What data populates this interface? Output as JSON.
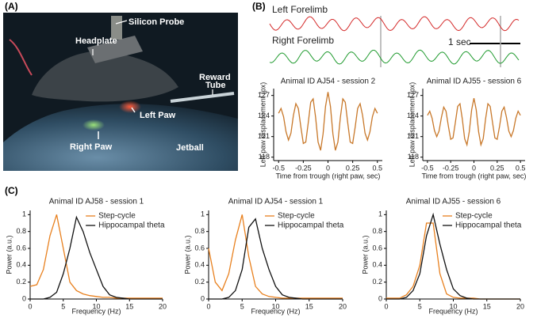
{
  "panel_labels": [
    "(A)",
    "(B)",
    "(C)"
  ],
  "photo": {
    "annotations": [
      "Silicon Probe",
      "Headplate",
      "Reward",
      "Tube",
      "Left Paw",
      "Right Paw",
      "Jetball"
    ]
  },
  "traces": {
    "labels": [
      "Left Forelimb",
      "Right Forelimb"
    ],
    "scale_bar": "1 sec",
    "colors": [
      "#d42a2a",
      "#1f9a2e"
    ]
  },
  "chart_data": [
    {
      "type": "line",
      "title": "Animal ID AJ54 - session 2",
      "xlabel": "Time from trough (right paw, sec)",
      "ylabel": "Left paw displacement (px)",
      "x": [
        -0.5,
        -0.475,
        -0.45,
        -0.425,
        -0.4,
        -0.375,
        -0.35,
        -0.325,
        -0.3,
        -0.275,
        -0.25,
        -0.225,
        -0.2,
        -0.175,
        -0.15,
        -0.125,
        -0.1,
        -0.075,
        -0.05,
        -0.025,
        0,
        0.025,
        0.05,
        0.075,
        0.1,
        0.125,
        0.15,
        0.175,
        0.2,
        0.225,
        0.25,
        0.275,
        0.3,
        0.325,
        0.35,
        0.375,
        0.4,
        0.425,
        0.45,
        0.475,
        0.5
      ],
      "series": [
        {
          "name": null,
          "color": "#c8782a",
          "values": [
            124.4,
            125.1,
            123.9,
            121.7,
            120.5,
            121.5,
            124.1,
            125.8,
            125.1,
            122.4,
            120.0,
            120.2,
            123.0,
            126.0,
            126.5,
            123.8,
            120.2,
            119.0,
            121.4,
            125.4,
            127.5,
            125.4,
            121.4,
            119.0,
            120.2,
            123.8,
            126.5,
            126.0,
            123.0,
            120.2,
            120.0,
            122.4,
            125.1,
            125.8,
            124.1,
            121.5,
            120.5,
            121.7,
            123.9,
            125.1,
            124.4
          ]
        }
      ],
      "xlim": [
        -0.55,
        0.55
      ],
      "ylim": [
        117.5,
        128
      ],
      "xticks": [
        -0.5,
        -0.25,
        0,
        0.25,
        0.5
      ],
      "yticks": [
        118,
        121,
        124,
        127
      ],
      "legend": null
    },
    {
      "type": "line",
      "title": "Animal ID AJ55 - session 6",
      "xlabel": "Time from trough (right paw, sec)",
      "ylabel": "Left paw displacement (px)",
      "x": [
        -0.5,
        -0.475,
        -0.45,
        -0.425,
        -0.4,
        -0.375,
        -0.35,
        -0.325,
        -0.3,
        -0.275,
        -0.25,
        -0.225,
        -0.2,
        -0.175,
        -0.15,
        -0.125,
        -0.1,
        -0.075,
        -0.05,
        -0.025,
        0,
        0.025,
        0.05,
        0.075,
        0.1,
        0.125,
        0.15,
        0.175,
        0.2,
        0.225,
        0.25,
        0.275,
        0.3,
        0.325,
        0.35,
        0.375,
        0.4,
        0.425,
        0.45,
        0.475,
        0.5
      ],
      "series": [
        {
          "name": null,
          "color": "#c8782a",
          "values": [
            124.1,
            124.7,
            123.7,
            121.9,
            121.0,
            121.8,
            123.8,
            125.3,
            124.7,
            122.5,
            120.6,
            120.8,
            123.0,
            125.4,
            125.8,
            123.6,
            120.7,
            119.8,
            121.7,
            124.9,
            126.6,
            124.9,
            121.7,
            119.8,
            120.7,
            123.6,
            125.8,
            125.4,
            123.0,
            120.8,
            120.6,
            122.5,
            124.7,
            125.3,
            123.8,
            121.8,
            121.0,
            121.9,
            123.7,
            124.7,
            124.1
          ]
        }
      ],
      "xlim": [
        -0.55,
        0.55
      ],
      "ylim": [
        117.5,
        128
      ],
      "xticks": [
        -0.5,
        -0.25,
        0,
        0.25,
        0.5
      ],
      "yticks": [
        118,
        121,
        124,
        127
      ],
      "legend": null
    },
    {
      "type": "line",
      "title": "Animal ID AJ58 - session 1",
      "xlabel": "Frequency (Hz)",
      "ylabel": "Power (a.u.)",
      "x": [
        0,
        1,
        2,
        3,
        4,
        5,
        6,
        7,
        8,
        9,
        10,
        11,
        12,
        13,
        14,
        15,
        16,
        17,
        18,
        19,
        20
      ],
      "series": [
        {
          "name": "Step-cycle",
          "color": "#e8801e",
          "values": [
            0.15,
            0.17,
            0.35,
            0.75,
            1.0,
            0.6,
            0.2,
            0.1,
            0.06,
            0.04,
            0.03,
            0.02,
            0.02,
            0.01,
            0.01,
            0.01,
            0.01,
            0.01,
            0.01,
            0.01,
            0.01
          ]
        },
        {
          "name": "Hippocampal theta",
          "color": "#111111",
          "values": [
            0,
            0,
            0,
            0.02,
            0.08,
            0.3,
            0.6,
            0.97,
            0.8,
            0.55,
            0.35,
            0.15,
            0.05,
            0.02,
            0.01,
            0,
            0,
            0,
            0,
            0,
            0
          ]
        }
      ],
      "xlim": [
        0,
        20
      ],
      "ylim": [
        0,
        1.05
      ],
      "xticks": [
        0,
        5,
        10,
        15,
        20
      ],
      "yticks": [
        0,
        0.2,
        0.4,
        0.6,
        0.8,
        1
      ],
      "legend": "upper right"
    },
    {
      "type": "line",
      "title": "Animal ID AJ54 - session 1",
      "xlabel": "Frequency (Hz)",
      "ylabel": "Power (a.u.)",
      "x": [
        0,
        1,
        2,
        3,
        4,
        5,
        6,
        7,
        8,
        9,
        10,
        11,
        12,
        13,
        14,
        15,
        16,
        17,
        18,
        19,
        20
      ],
      "series": [
        {
          "name": "Step-cycle",
          "color": "#e8801e",
          "values": [
            0.6,
            0.2,
            0.1,
            0.3,
            0.7,
            1.0,
            0.5,
            0.15,
            0.06,
            0.03,
            0.02,
            0.01,
            0.01,
            0.01,
            0.01,
            0.01,
            0.01,
            0.01,
            0.01,
            0.01,
            0.01
          ]
        },
        {
          "name": "Hippocampal theta",
          "color": "#111111",
          "values": [
            0,
            0,
            0,
            0.02,
            0.1,
            0.35,
            0.85,
            0.95,
            0.6,
            0.35,
            0.15,
            0.05,
            0.02,
            0.01,
            0,
            0,
            0,
            0,
            0,
            0,
            0
          ]
        }
      ],
      "xlim": [
        0,
        20
      ],
      "ylim": [
        0,
        1.05
      ],
      "xticks": [
        0,
        5,
        10,
        15,
        20
      ],
      "yticks": [
        0,
        0.2,
        0.4,
        0.6,
        0.8,
        1
      ],
      "legend": "upper right"
    },
    {
      "type": "line",
      "title": "Animal ID AJ55 - session 6",
      "xlabel": "Frequency (Hz)",
      "ylabel": "Power (a.u.)",
      "x": [
        0,
        1,
        2,
        3,
        4,
        5,
        6,
        7,
        8,
        9,
        10,
        11,
        12,
        13,
        14,
        15,
        16,
        17,
        18,
        19,
        20
      ],
      "series": [
        {
          "name": "Step-cycle",
          "color": "#e8801e",
          "values": [
            0.01,
            0.01,
            0.01,
            0.05,
            0.15,
            0.4,
            0.9,
            0.9,
            0.3,
            0.06,
            0.02,
            0.01,
            0.01,
            0.01,
            0,
            0,
            0,
            0,
            0,
            0,
            0
          ]
        },
        {
          "name": "Hippocampal theta",
          "color": "#111111",
          "values": [
            0,
            0,
            0,
            0.02,
            0.1,
            0.3,
            0.75,
            1.0,
            0.65,
            0.35,
            0.12,
            0.04,
            0.01,
            0,
            0,
            0,
            0,
            0,
            0,
            0,
            0
          ]
        }
      ],
      "xlim": [
        0,
        20
      ],
      "ylim": [
        0,
        1.05
      ],
      "xticks": [
        0,
        5,
        10,
        15,
        20
      ],
      "yticks": [
        0,
        0.2,
        0.4,
        0.6,
        0.8,
        1
      ],
      "legend": "upper right"
    }
  ]
}
